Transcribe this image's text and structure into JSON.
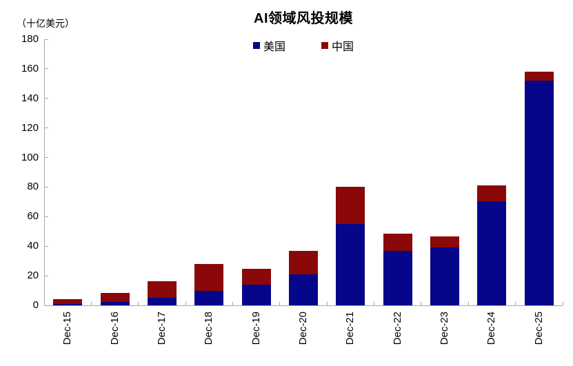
{
  "chart_data": {
    "type": "bar",
    "stacked": true,
    "title": "AI领域风投规模",
    "unit_label": "（十亿美元）",
    "xlabel": "",
    "ylabel": "",
    "categories": [
      "Dec-15",
      "Dec-16",
      "Dec-17",
      "Dec-18",
      "Dec-19",
      "Dec-20",
      "Dec-21",
      "Dec-22",
      "Dec-23",
      "Dec-24",
      "Dec-25"
    ],
    "series": [
      {
        "id": "us",
        "name": "美国",
        "color": "#06068A",
        "values": [
          1,
          2.5,
          5,
          10,
          14,
          21,
          55,
          37,
          39,
          70.5,
          152
        ]
      },
      {
        "id": "china",
        "name": "中国",
        "color": "#8B0808",
        "values": [
          3,
          6,
          11.5,
          18,
          10.5,
          16,
          25,
          11.5,
          7.5,
          10.5,
          6
        ]
      }
    ],
    "totals": [
      4,
      8.5,
      16.5,
      28,
      24.5,
      37,
      80,
      48.5,
      46.5,
      81,
      158
    ],
    "ylim": [
      0,
      180
    ],
    "yticks": [
      0,
      20,
      40,
      60,
      80,
      100,
      120,
      140,
      160,
      180
    ],
    "grid": false,
    "legend_position": "top-center",
    "axis_color": "#a6a6a6",
    "text_color": "#000000"
  }
}
